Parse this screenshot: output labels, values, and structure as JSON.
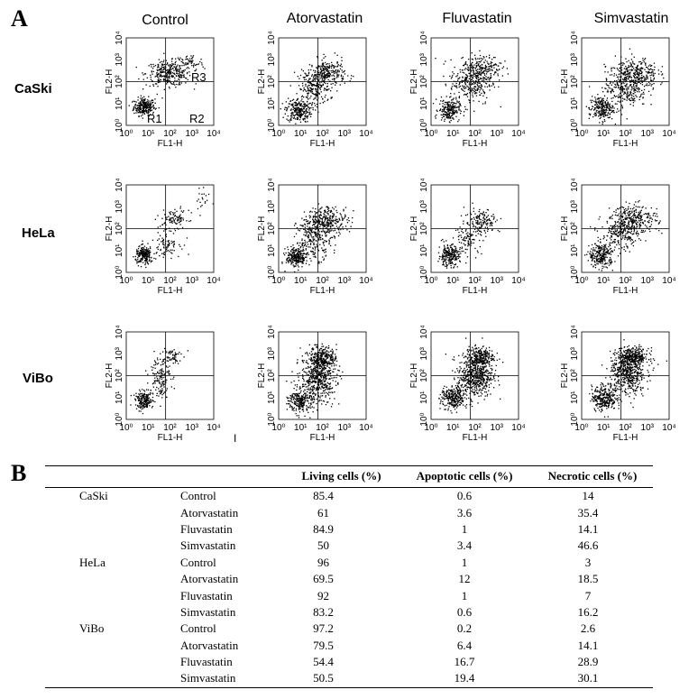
{
  "panel_a_label": "A",
  "panel_b_label": "B",
  "treatments": [
    "Control",
    "Atorvastatin",
    "Fluvastatin",
    "Simvastatin"
  ],
  "cell_lines": [
    "CaSki",
    "HeLa",
    "ViBo"
  ],
  "axis": {
    "x_label": "FL1-H",
    "y_label": "FL2-H",
    "ticks": [
      "10⁰",
      "10¹",
      "10²",
      "10³",
      "10⁴"
    ]
  },
  "regions": {
    "r1": "R1",
    "r2": "R2",
    "r3": "R3"
  },
  "stray_mark": "I",
  "table": {
    "headers": [
      "",
      "",
      "Living cells (%)",
      "Apoptotic cells (%)",
      "Necrotic cells (%)"
    ],
    "rows": [
      {
        "line": "CaSki",
        "treatment": "Control",
        "living": "85.4",
        "apoptotic": "0.6",
        "necrotic": "14"
      },
      {
        "line": "",
        "treatment": "Atorvastatin",
        "living": "61",
        "apoptotic": "3.6",
        "necrotic": "35.4"
      },
      {
        "line": "",
        "treatment": "Fluvastatin",
        "living": "84.9",
        "apoptotic": "1",
        "necrotic": "14.1"
      },
      {
        "line": "",
        "treatment": "Simvastatin",
        "living": "50",
        "apoptotic": "3.4",
        "necrotic": "46.6"
      },
      {
        "line": "HeLa",
        "treatment": "Control",
        "living": "96",
        "apoptotic": "1",
        "necrotic": "3"
      },
      {
        "line": "",
        "treatment": "Atorvastatin",
        "living": "69.5",
        "apoptotic": "12",
        "necrotic": "18.5"
      },
      {
        "line": "",
        "treatment": "Fluvastatin",
        "living": "92",
        "apoptotic": "1",
        "necrotic": "7"
      },
      {
        "line": "",
        "treatment": "Simvastatin",
        "living": "83.2",
        "apoptotic": "0.6",
        "necrotic": "16.2"
      },
      {
        "line": "ViBo",
        "treatment": "Control",
        "living": "97.2",
        "apoptotic": "0.2",
        "necrotic": "2.6"
      },
      {
        "line": "",
        "treatment": "Atorvastatin",
        "living": "79.5",
        "apoptotic": "6.4",
        "necrotic": "14.1"
      },
      {
        "line": "",
        "treatment": "Fluvastatin",
        "living": "54.4",
        "apoptotic": "16.7",
        "necrotic": "28.9"
      },
      {
        "line": "",
        "treatment": "Simvastatin",
        "living": "50.5",
        "apoptotic": "19.4",
        "necrotic": "30.1"
      }
    ]
  },
  "chart_data": {
    "type": "table",
    "columns": [
      "Living cells (%)",
      "Apoptotic cells (%)",
      "Necrotic cells (%)"
    ],
    "groups": [
      {
        "cell_line": "CaSki",
        "values": [
          [
            85.4,
            0.6,
            14
          ],
          [
            61,
            3.6,
            35.4
          ],
          [
            84.9,
            1,
            14.1
          ],
          [
            50,
            3.4,
            46.6
          ]
        ]
      },
      {
        "cell_line": "HeLa",
        "values": [
          [
            96,
            1,
            3
          ],
          [
            69.5,
            12,
            18.5
          ],
          [
            92,
            1,
            7
          ],
          [
            83.2,
            0.6,
            16.2
          ]
        ]
      },
      {
        "cell_line": "ViBo",
        "values": [
          [
            97.2,
            0.2,
            2.6
          ],
          [
            79.5,
            6.4,
            14.1
          ],
          [
            54.4,
            16.7,
            28.9
          ],
          [
            50.5,
            19.4,
            30.1
          ]
        ]
      }
    ],
    "treatments": [
      "Control",
      "Atorvastatin",
      "Fluvastatin",
      "Simvastatin"
    ]
  }
}
